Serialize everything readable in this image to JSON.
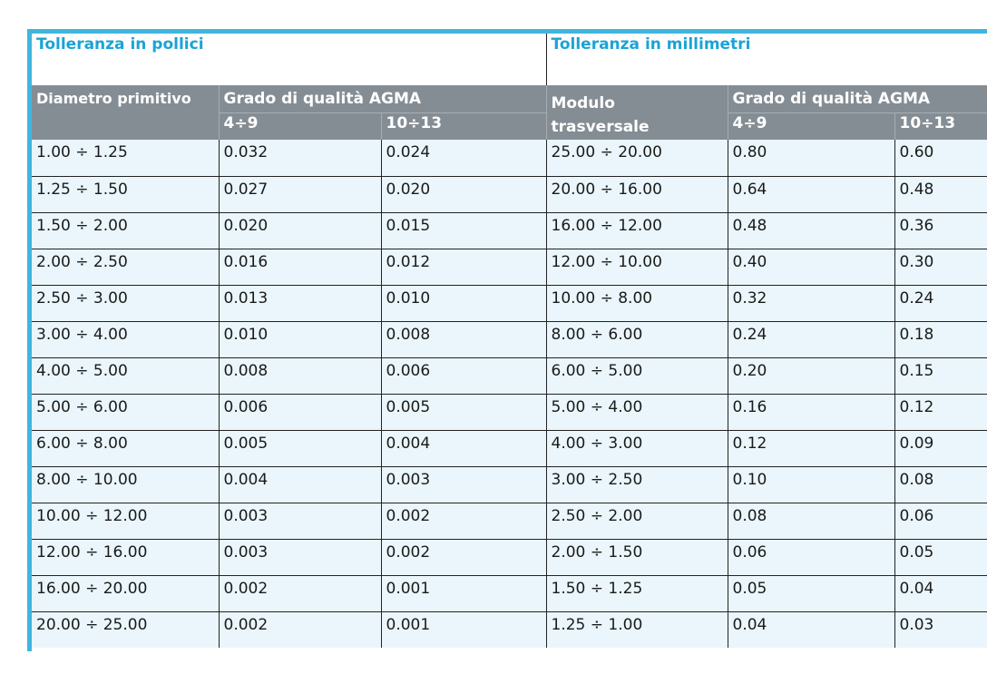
{
  "inches": {
    "title": "Tolleranza in pollici",
    "col_diameter": "Diametro primitivo",
    "col_grade": "Grado di qualità AGMA",
    "grade_a": "4÷9",
    "grade_b": "10÷13"
  },
  "millimeters": {
    "title": "Tolleranza in millimetri",
    "col_module_line1": "Modulo",
    "col_module_line2": "trasversale",
    "col_grade": "Grado di qualità AGMA",
    "grade_a": "4÷9",
    "grade_b": "10÷13"
  },
  "rows": [
    [
      "1.00 ÷ 1.25",
      "0.032",
      "0.024",
      "25.00 ÷ 20.00",
      "0.80",
      "0.60"
    ],
    [
      "1.25 ÷ 1.50",
      "0.027",
      "0.020",
      "20.00 ÷ 16.00",
      "0.64",
      "0.48"
    ],
    [
      "1.50 ÷ 2.00",
      "0.020",
      "0.015",
      "16.00 ÷ 12.00",
      "0.48",
      "0.36"
    ],
    [
      "2.00 ÷ 2.50",
      "0.016",
      "0.012",
      "12.00 ÷ 10.00",
      "0.40",
      "0.30"
    ],
    [
      "2.50 ÷ 3.00",
      "0.013",
      "0.010",
      "10.00 ÷ 8.00",
      "0.32",
      "0.24"
    ],
    [
      "3.00 ÷ 4.00",
      "0.010",
      "0.008",
      "8.00 ÷ 6.00",
      "0.24",
      "0.18"
    ],
    [
      "4.00 ÷ 5.00",
      "0.008",
      "0.006",
      "6.00 ÷ 5.00",
      "0.20",
      "0.15"
    ],
    [
      "5.00 ÷ 6.00",
      "0.006",
      "0.005",
      "5.00 ÷ 4.00",
      "0.16",
      "0.12"
    ],
    [
      "6.00 ÷ 8.00",
      "0.005",
      "0.004",
      "4.00 ÷ 3.00",
      "0.12",
      "0.09"
    ],
    [
      "8.00 ÷ 10.00",
      "0.004",
      "0.003",
      "3.00 ÷ 2.50",
      "0.10",
      "0.08"
    ],
    [
      "10.00 ÷ 12.00",
      "0.003",
      "0.002",
      "2.50 ÷ 2.00",
      "0.08",
      "0.06"
    ],
    [
      "12.00 ÷ 16.00",
      "0.003",
      "0.002",
      "2.00 ÷ 1.50",
      "0.06",
      "0.05"
    ],
    [
      "16.00 ÷ 20.00",
      "0.002",
      "0.001",
      "1.50 ÷ 1.25",
      "0.05",
      "0.04"
    ],
    [
      "20.00 ÷ 25.00",
      "0.002",
      "0.001",
      "1.25 ÷ 1.00",
      "0.04",
      "0.03"
    ]
  ],
  "colors": {
    "accent": "#3fb6e0",
    "title_text": "#1ba3d6",
    "header_bg": "#858d94",
    "row_bg": "#eaf6fb"
  }
}
